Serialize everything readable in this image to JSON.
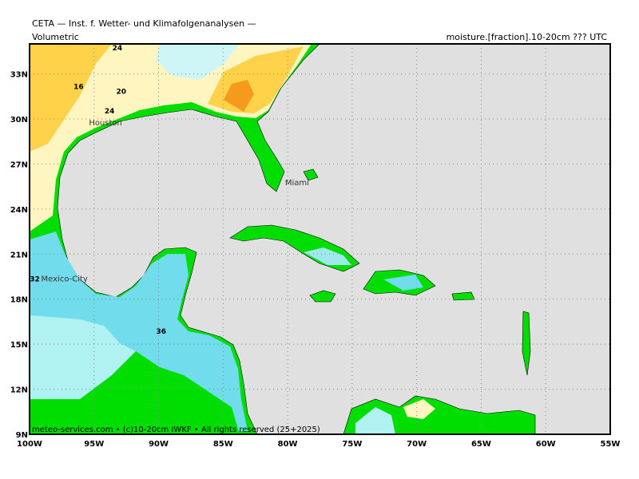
{
  "header": {
    "title": "CETA — Inst. f. Wetter- und Klimafolgenanalysen —",
    "left": "Volumetric",
    "right": "moisture.[fraction].10-20cm ??? UTC"
  },
  "map": {
    "lon_range": [
      -100,
      -55
    ],
    "lat_range": [
      9,
      35
    ],
    "lon_ticks": [
      {
        "value": -100,
        "label": "100W"
      },
      {
        "value": -95,
        "label": "95W"
      },
      {
        "value": -90,
        "label": "90W"
      },
      {
        "value": -85,
        "label": "85W"
      },
      {
        "value": -80,
        "label": "80W"
      },
      {
        "value": -75,
        "label": "75W"
      },
      {
        "value": -70,
        "label": "70W"
      },
      {
        "value": -65,
        "label": "65W"
      },
      {
        "value": -60,
        "label": "60W"
      },
      {
        "value": -55,
        "label": "55W"
      }
    ],
    "lat_ticks": [
      {
        "value": 9,
        "label": "9N"
      },
      {
        "value": 12,
        "label": "12N"
      },
      {
        "value": 15,
        "label": "15N"
      },
      {
        "value": 18,
        "label": "18N"
      },
      {
        "value": 21,
        "label": "21N"
      },
      {
        "value": 24,
        "label": "24N"
      },
      {
        "value": 27,
        "label": "27N"
      },
      {
        "value": 30,
        "label": "30N"
      },
      {
        "value": 33,
        "label": "33N"
      }
    ],
    "grid": true,
    "cities": [
      {
        "name": "Houston",
        "lon": -95.4,
        "lat": 29.8
      },
      {
        "name": "Miami",
        "lon": -80.2,
        "lat": 25.8
      },
      {
        "name": "Mexico-City",
        "lon": -99.1,
        "lat": 19.4
      }
    ],
    "contour_labels": [
      {
        "value": 24,
        "lon": -93.2,
        "lat": 34.8
      },
      {
        "value": 16,
        "lon": -96.2,
        "lat": 32.2
      },
      {
        "value": 20,
        "lon": -92.9,
        "lat": 31.9
      },
      {
        "value": 24,
        "lon": -93.8,
        "lat": 30.6
      },
      {
        "value": 32,
        "lon": -99.6,
        "lat": 19.4
      },
      {
        "value": 36,
        "lon": -89.8,
        "lat": 15.9
      }
    ]
  },
  "footer": "meteo-services.com • (c)10-20cm IWKF • All rights reserved (25+2025)"
}
